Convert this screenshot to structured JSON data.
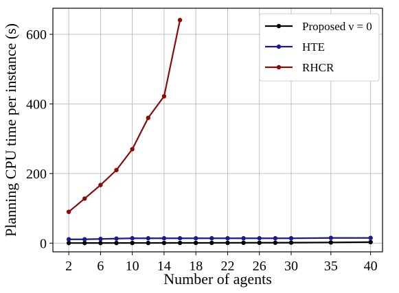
{
  "chart_data": {
    "type": "line",
    "xlabel": "Number of agents",
    "ylabel": "Planning CPU time per instance (s)",
    "x_ticks": [
      2,
      6,
      10,
      14,
      18,
      22,
      26,
      30,
      35,
      40
    ],
    "y_ticks": [
      0,
      200,
      400,
      600
    ],
    "xlim": [
      0,
      41.5
    ],
    "ylim": [
      -25,
      675
    ],
    "grid": true,
    "legend_position": "top-right",
    "series": [
      {
        "name": "Proposed ν = 0",
        "color": "#000000",
        "x": [
          2,
          4,
          6,
          8,
          10,
          12,
          14,
          16,
          18,
          20,
          22,
          24,
          26,
          28,
          30,
          35,
          40
        ],
        "y": [
          0.3,
          0.3,
          0.4,
          0.4,
          0.5,
          0.5,
          0.6,
          0.6,
          0.7,
          0.8,
          0.9,
          1.0,
          1.1,
          1.2,
          1.4,
          2.0,
          3.0
        ]
      },
      {
        "name": "HTE",
        "color": "#1a1a8c",
        "x": [
          2,
          4,
          6,
          8,
          10,
          12,
          14,
          16,
          18,
          20,
          22,
          24,
          26,
          28,
          30,
          35,
          40
        ],
        "y": [
          11,
          11,
          12,
          13,
          14,
          14,
          14,
          14,
          14,
          14,
          14,
          14,
          14,
          14,
          14,
          15,
          15
        ]
      },
      {
        "name": "RHCR",
        "color": "#8b0a0a",
        "x": [
          2,
          4,
          6,
          8,
          10,
          12,
          14,
          16
        ],
        "y": [
          90,
          128,
          167,
          210,
          270,
          360,
          422,
          641
        ]
      }
    ]
  }
}
